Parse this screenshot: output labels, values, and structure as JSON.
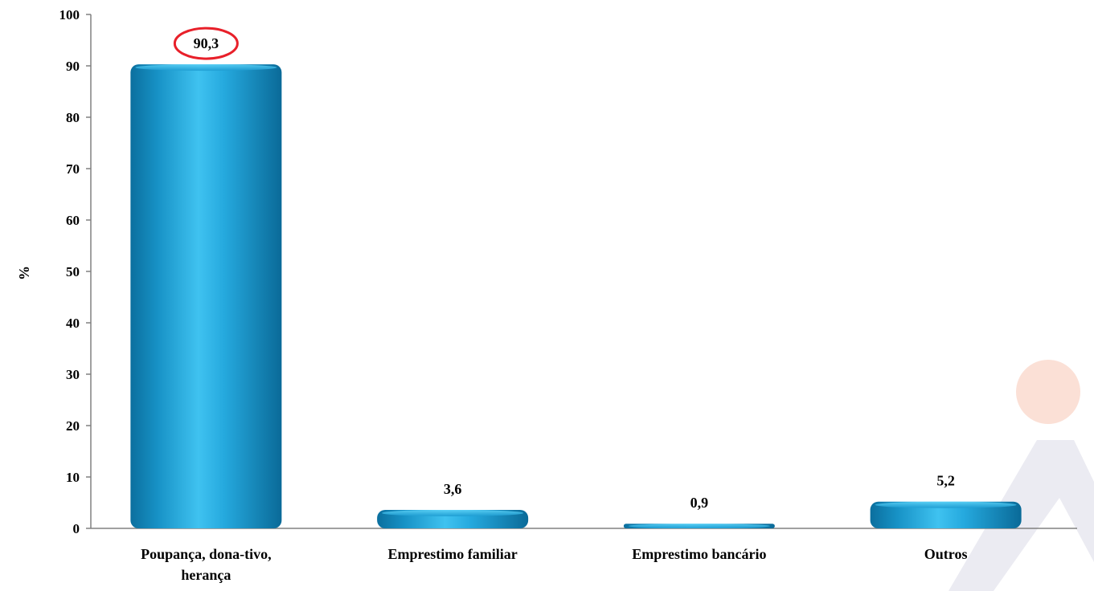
{
  "chart_data": {
    "type": "bar",
    "title": "",
    "xlabel": "",
    "ylabel": "%",
    "ylim": [
      0,
      100
    ],
    "yticks": [
      0,
      10,
      20,
      30,
      40,
      50,
      60,
      70,
      80,
      90,
      100
    ],
    "categories": [
      "Poupança, dona-tivo, herança",
      "Emprestimo familiar",
      "Emprestimo bancário",
      "Outros"
    ],
    "category_lines": [
      [
        "Poupança, dona-tivo,",
        "herança"
      ],
      [
        "Emprestimo familiar"
      ],
      [
        "Emprestimo bancário"
      ],
      [
        "Outros"
      ]
    ],
    "values": [
      90.3,
      3.6,
      0.9,
      5.2
    ],
    "value_labels": [
      "90,3",
      "3,6",
      "0,9",
      "5,2"
    ],
    "highlighted_index": 0,
    "grid": false,
    "legend": "none",
    "bar_color": "#1ba0d8",
    "highlight_color": "#e8202a"
  }
}
